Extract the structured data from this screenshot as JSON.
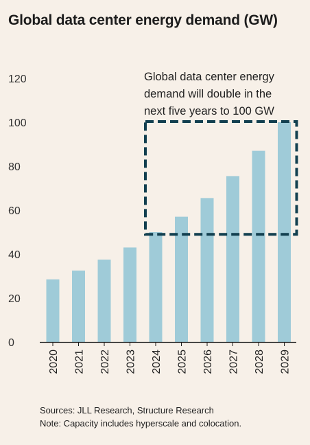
{
  "title": "Global data center energy demand (GW)",
  "annotation": [
    "Global data center energy",
    "demand will double in the",
    "next five years to 100 GW"
  ],
  "footer": {
    "sources": "Sources: JLL Research, Structure Research",
    "note": "Note: Capacity includes hyperscale and colocation."
  },
  "colors": {
    "background": "#f7f0e8",
    "bar": "#9fcbd8",
    "box": "#123f4f",
    "axis": "#1c1c1c"
  },
  "chart_data": {
    "type": "bar",
    "title": "Global data center energy demand (GW)",
    "categories": [
      "2020",
      "2021",
      "2022",
      "2023",
      "2024",
      "2025",
      "2026",
      "2027",
      "2028",
      "2029"
    ],
    "values": [
      28.5,
      32.5,
      37.5,
      43,
      50,
      57,
      65.5,
      75.5,
      87,
      100
    ],
    "ylim": [
      0,
      120
    ],
    "yticks": [
      "0",
      "20",
      "40",
      "60",
      "80",
      "100",
      "120"
    ],
    "grid": false,
    "highlight": {
      "x_from": "2024",
      "x_to": "2029",
      "y_from": 49,
      "y_to": 100,
      "style": "dashed"
    }
  }
}
